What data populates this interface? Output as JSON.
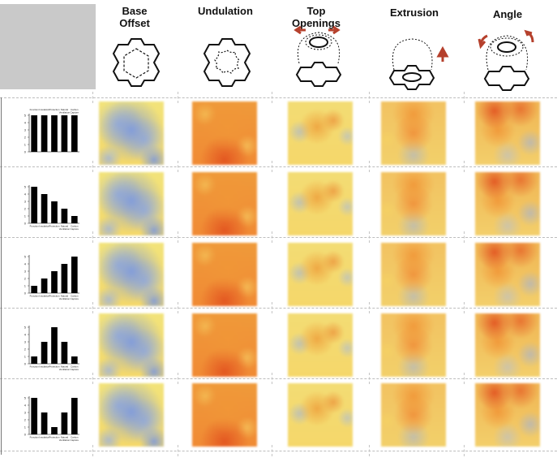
{
  "headers": {
    "base_offset": [
      "Base",
      "Offset"
    ],
    "undulation": [
      "Undulation"
    ],
    "top_openings": [
      "Top",
      "Openings"
    ],
    "extrusion": [
      "Extrusion"
    ],
    "angle": [
      "Angle"
    ]
  },
  "chart_data": [
    {
      "type": "bar",
      "categories": [
        "Function",
        "Insulation",
        "Protection",
        "Natural Ventilation",
        "Carbon Capture"
      ],
      "values": [
        5,
        5,
        5,
        5,
        5
      ],
      "ylim": [
        0,
        5
      ],
      "title": "",
      "xlabel": "",
      "ylabel": "",
      "labels_position": "top"
    },
    {
      "type": "bar",
      "categories": [
        "Function",
        "Insulation",
        "Protection",
        "Natural Ventilation",
        "Carbon Capture"
      ],
      "values": [
        5,
        4,
        3,
        2,
        1
      ],
      "ylim": [
        0,
        5
      ],
      "title": "",
      "xlabel": "",
      "ylabel": "",
      "labels_position": "bottom"
    },
    {
      "type": "bar",
      "categories": [
        "Function",
        "Insulation",
        "Protection",
        "Natural Ventilation",
        "Carbon Capture"
      ],
      "values": [
        1,
        2,
        3,
        4,
        5
      ],
      "ylim": [
        0,
        5
      ],
      "title": "",
      "xlabel": "",
      "ylabel": "",
      "labels_position": "bottom"
    },
    {
      "type": "bar",
      "categories": [
        "Function",
        "Insulation",
        "Protection",
        "Natural Ventilation",
        "Carbon Capture"
      ],
      "values": [
        1,
        3,
        5,
        3,
        1
      ],
      "ylim": [
        0,
        5
      ],
      "title": "",
      "xlabel": "",
      "ylabel": "",
      "labels_position": "bottom"
    },
    {
      "type": "bar",
      "categories": [
        "Function",
        "Insulation",
        "Protection",
        "Natural Ventilation",
        "Carbon Capture"
      ],
      "values": [
        5,
        3,
        1,
        3,
        5
      ],
      "ylim": [
        0,
        5
      ],
      "title": "",
      "xlabel": "",
      "ylabel": "",
      "labels_position": "bottom"
    }
  ],
  "colors": {
    "bar": "#000000",
    "heat_cold": "#7f9fe0",
    "heat_neutral": "#f4e57a",
    "heat_warm": "#f1a33d",
    "heat_hot": "#e2521f",
    "arrow": "#b5402c"
  }
}
